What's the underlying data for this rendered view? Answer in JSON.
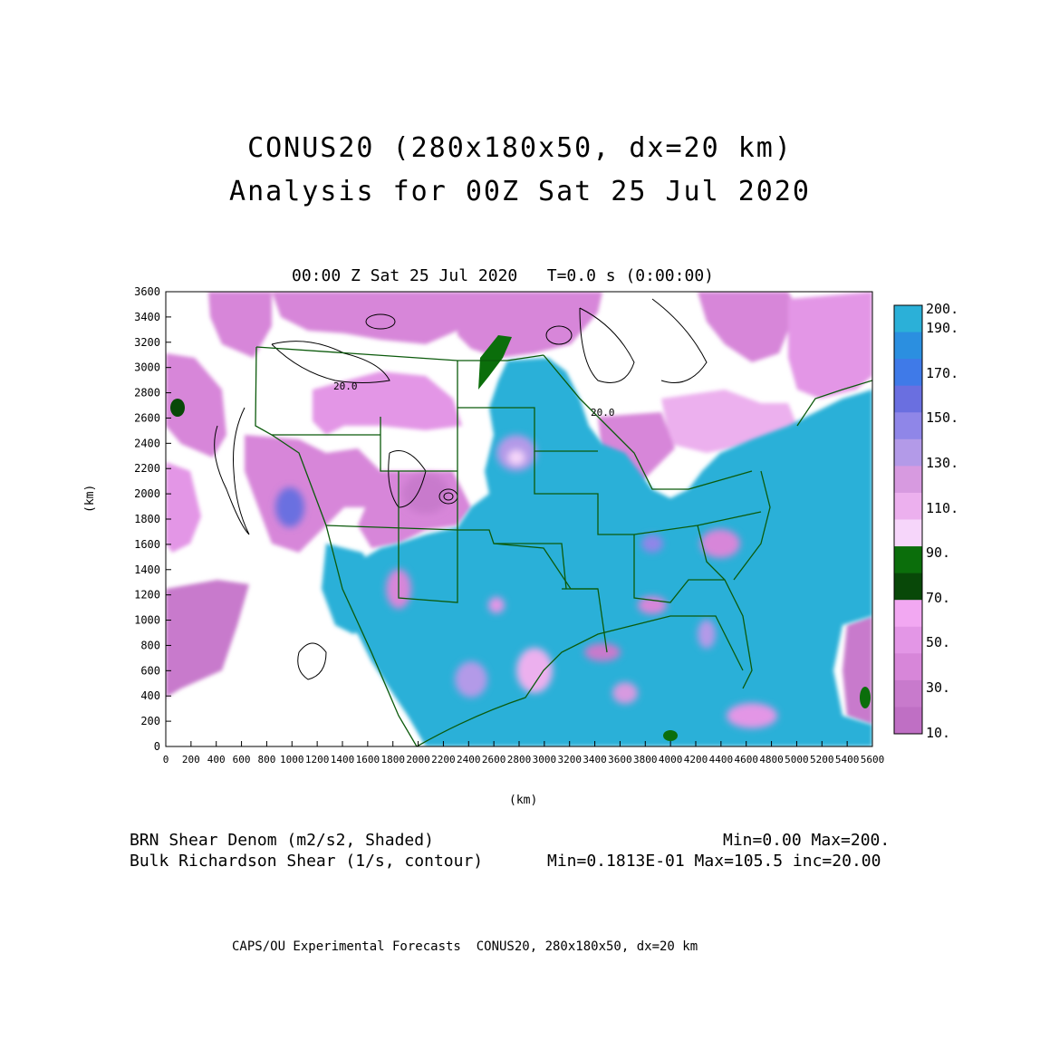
{
  "title": {
    "line1": "CONUS20 (280x180x50, dx=20 km)",
    "line2": "Analysis for 00Z Sat 25 Jul 2020"
  },
  "plot": {
    "time_label": "00:00 Z Sat 25 Jul 2020   T=0.0 s (0:00:00)",
    "x_unit": "(km)",
    "y_unit": "(km)",
    "x_ticks": [
      "0",
      "200",
      "400",
      "600",
      "800",
      "1000",
      "1200",
      "1400",
      "1600",
      "1800",
      "2000",
      "2200",
      "2400",
      "2600",
      "2800",
      "3000",
      "3200",
      "3400",
      "3600",
      "3800",
      "4000",
      "4200",
      "4400",
      "4600",
      "4800",
      "5000",
      "5200",
      "5400",
      "5600"
    ],
    "y_ticks": [
      "0",
      "200",
      "400",
      "600",
      "800",
      "1000",
      "1200",
      "1400",
      "1600",
      "1800",
      "2000",
      "2200",
      "2400",
      "2600",
      "2800",
      "3000",
      "3200",
      "3400",
      "3600"
    ],
    "xlim": [
      0,
      5600
    ],
    "ylim": [
      0,
      3600
    ],
    "contour_labels": [
      "20.0",
      "20.0"
    ]
  },
  "legend": {
    "labels": [
      "200.",
      "190.",
      "170.",
      "150.",
      "130.",
      "110.",
      "90.",
      "70.",
      "50.",
      "30.",
      "10."
    ],
    "colors": [
      "#2bb0d8",
      "#2b8fe0",
      "#3f7ae8",
      "#6a6fe0",
      "#8f86e8",
      "#b39ae8",
      "#d79ae0",
      "#ecb0ee",
      "#f6d6fa",
      "#0b6e0b",
      "#084808",
      "#f2a8f2",
      "#e396e6",
      "#d786d9",
      "#c87acc",
      "#bf6fc4"
    ]
  },
  "footer": {
    "shaded_field": "BRN Shear Denom (m2/s2, Shaded)",
    "shaded_range": "Min=0.00 Max=200.",
    "contour_field": "Bulk Richardson Shear (1/s, contour)",
    "contour_range": "Min=0.1813E-01 Max=105.5 inc=20.00",
    "credit": "CAPS/OU Experimental Forecasts  CONUS20, 280x180x50, dx=20 km"
  },
  "colors": {
    "ocean_high": "#2bb0d8",
    "low_pink": "#e396e6",
    "map_lines": "#0b5a0b",
    "contours": "#000000"
  }
}
